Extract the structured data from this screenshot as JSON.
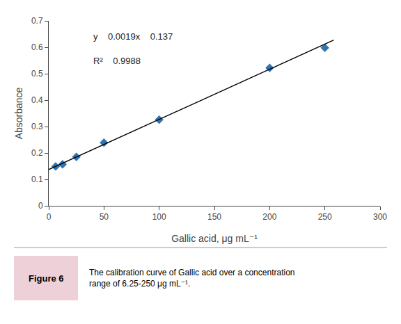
{
  "chart_data": {
    "type": "scatter",
    "x_label": "Gallic acid, μg mL⁻¹",
    "y_label": "Absorbance",
    "series": [
      {
        "type": "scatter",
        "marker": "diamond",
        "color": "#2E75B6",
        "x": [
          6.25,
          12.5,
          25,
          50,
          100,
          200,
          250
        ],
        "values": [
          0.149,
          0.157,
          0.185,
          0.239,
          0.326,
          0.522,
          0.598
        ]
      },
      {
        "type": "line",
        "line_style": "solid",
        "color": "black",
        "x": [
          0,
          258
        ],
        "values": [
          0.137,
          0.6272
        ]
      }
    ],
    "xlim": [
      0,
      300
    ],
    "ylim": [
      0,
      0.7
    ],
    "xticks": [
      0,
      50,
      100,
      150,
      200,
      250,
      300
    ],
    "yticks": [
      0,
      0.1,
      0.2,
      0.3,
      0.4,
      0.5,
      0.6,
      0.7
    ],
    "grid": false,
    "annotations": [
      "y    0.0019x    0.137",
      "R²    0.9988"
    ],
    "figure_label": "Figure 6",
    "caption": "The calibration curve of Gallic acid over a concentration\nrange of 6.25-250 μg mL⁻¹."
  }
}
